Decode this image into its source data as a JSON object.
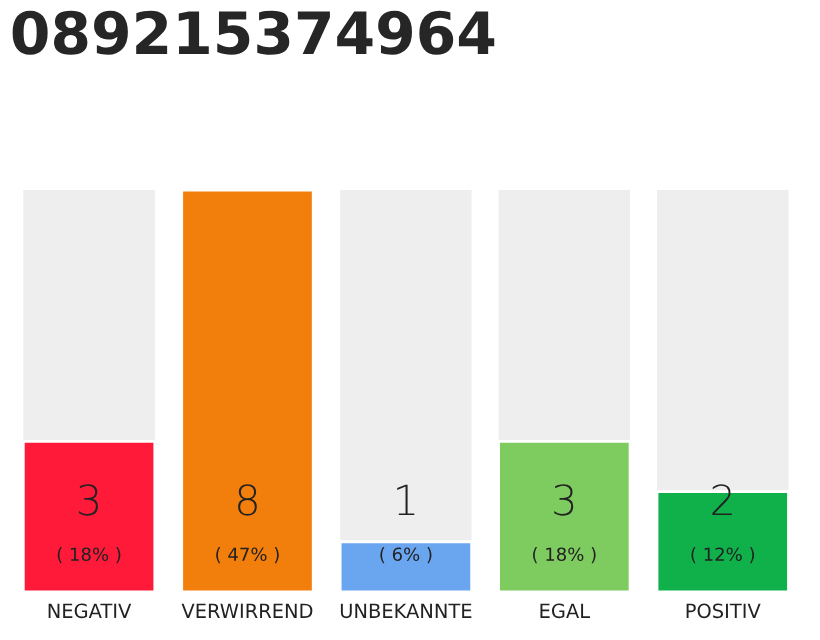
{
  "chart_data": {
    "type": "bar",
    "title": "089215374964",
    "categories": [
      "NEGATIV",
      "VERWIRREND",
      "UNBEKANNTE",
      "EGAL",
      "POSITIV"
    ],
    "values": [
      3,
      8,
      1,
      3,
      2
    ],
    "colors": [
      "#ff1a3a",
      "#f27e0c",
      "#6aa5ef",
      "#7ecb60",
      "#10b14b"
    ],
    "value_labels": [
      "3\n( 18% )",
      "8\n( 47% )",
      "1\n( 6% )",
      "3\n( 18% )",
      "2\n( 12% )"
    ],
    "ylim": [
      0,
      8
    ],
    "tick_labels": "x",
    "grid": false,
    "legend": false
  }
}
